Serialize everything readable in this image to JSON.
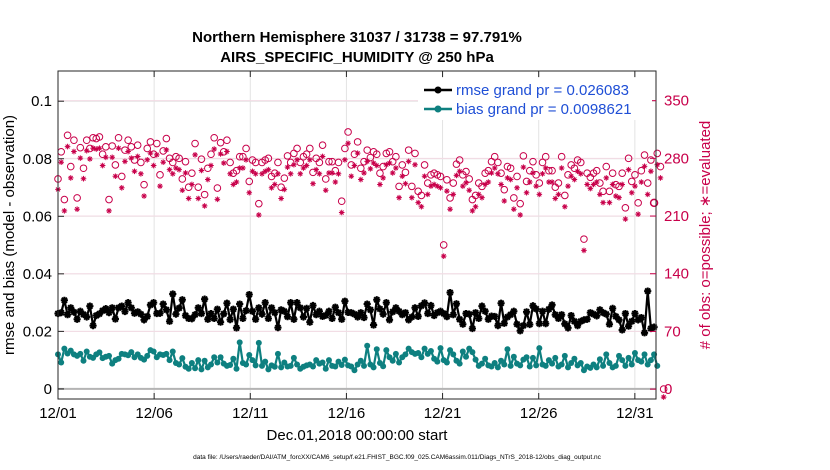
{
  "chart_data": {
    "type": "line",
    "title": "Northern Hemisphere 31037 / 31738 = 97.791%",
    "subtitle": "AIRS_SPECIFIC_HUMIDITY @ 250 hPa",
    "xlabel": "Dec.01,2018 00:00:00 start",
    "ylabel_left": "rmse and bias (model - observation)",
    "ylabel_right": "# of obs: o=possible; ∗=evaluated",
    "footnote": "data file: /Users/raeder/DAI/ATM_forcXX/CAM6_setup/f.e21.FHIST_BGC.f09_025.CAM6assim.011/Diags_NTrS_2018-12/obs_diag_output.nc",
    "x_ticks": [
      "12/01",
      "12/06",
      "12/11",
      "12/16",
      "12/21",
      "12/26",
      "12/31"
    ],
    "x_tick_days": [
      0,
      5,
      10,
      15,
      20,
      25,
      30
    ],
    "xlim_days": [
      0,
      31.1
    ],
    "y_left_ticks": [
      "0",
      "0.02",
      "0.04",
      "0.06",
      "0.08",
      "0.1"
    ],
    "y_left_tick_values": [
      0,
      0.02,
      0.04,
      0.06,
      0.08,
      0.1
    ],
    "ylim_left": [
      -0.0035,
      0.1105
    ],
    "y_right_ticks": [
      "0",
      "70",
      "140",
      "210",
      "280",
      "350"
    ],
    "y_right_tick_values": [
      0,
      70,
      140,
      210,
      280,
      350
    ],
    "ylim_right": [
      -12,
      386
    ],
    "grid": true,
    "legend_placement": "top-right",
    "legend": [
      "rmse grand pr = 0.026083",
      "bias grand pr = 0.0098621"
    ],
    "colors": {
      "rmse": "#000000",
      "bias": "#0e8080",
      "obs": "#c8004a",
      "zero_line": "#b4b4b4"
    },
    "series": [
      {
        "name": "rmse grand pr = 0.026083",
        "values": [
          0.0262,
          0.0265,
          0.0308,
          0.0258,
          0.0282,
          0.0267,
          0.0242,
          0.027,
          0.0259,
          0.025,
          0.0288,
          0.022,
          0.0255,
          0.0261,
          0.0272,
          0.0279,
          0.0265,
          0.0282,
          0.0243,
          0.0282,
          0.0288,
          0.0269,
          0.03,
          0.0282,
          0.0263,
          0.0268,
          0.026,
          0.024,
          0.0252,
          0.0292,
          0.03,
          0.0262,
          0.0263,
          0.0295,
          0.0275,
          0.0235,
          0.033,
          0.026,
          0.0281,
          0.031,
          0.0255,
          0.0245,
          0.0244,
          0.0258,
          0.0282,
          0.0262,
          0.0312,
          0.0242,
          0.0262,
          0.0245,
          0.0277,
          0.0232,
          0.0261,
          0.0298,
          0.0241,
          0.0277,
          0.0212,
          0.0295,
          0.0245,
          0.0272,
          0.0328,
          0.027,
          0.0242,
          0.0282,
          0.026,
          0.03,
          0.0245,
          0.0282,
          0.0265,
          0.0213,
          0.0275,
          0.027,
          0.0251,
          0.03,
          0.0242,
          0.03,
          0.0282,
          0.025,
          0.028,
          0.0232,
          0.029,
          0.0258,
          0.027,
          0.0252,
          0.0256,
          0.027,
          0.0245,
          0.0284,
          0.0265,
          0.0242,
          0.0305,
          0.0266,
          0.0265,
          0.026,
          0.025,
          0.0265,
          0.0248,
          0.0295,
          0.0275,
          0.0222,
          0.031,
          0.0278,
          0.026,
          0.03,
          0.024,
          0.0268,
          0.0282,
          0.027,
          0.0258,
          0.0265,
          0.024,
          0.025,
          0.0282,
          0.0252,
          0.0289,
          0.0299,
          0.0262,
          0.029,
          0.0255,
          0.0265,
          0.027,
          0.0262,
          0.0251,
          0.0335,
          0.0258,
          0.0296,
          0.0242,
          0.0225,
          0.0262,
          0.026,
          0.021,
          0.0265,
          0.0245,
          0.0288,
          0.027,
          0.0242,
          0.0253,
          0.0252,
          0.022,
          0.0298,
          0.0228,
          0.025,
          0.0258,
          0.027,
          0.0225,
          0.0202,
          0.022,
          0.0268,
          0.0224,
          0.0289,
          0.0278,
          0.0227,
          0.027,
          0.0227,
          0.0277,
          0.0292,
          0.0258,
          0.0245,
          0.0258,
          0.0226,
          0.0212,
          0.0255,
          0.0235,
          0.022,
          0.0235,
          0.024,
          0.0242,
          0.0265,
          0.026,
          0.0254,
          0.0275,
          0.0265,
          0.026,
          0.0225,
          0.028,
          0.0252,
          0.024,
          0.0205,
          0.0262,
          0.0218,
          0.0235,
          0.0262,
          0.024,
          0.0248,
          0.0195,
          0.034,
          0.021,
          0.0215
        ]
      },
      {
        "name": "bias grand pr = 0.0098621",
        "values": [
          0.012,
          0.0092,
          0.014,
          0.0123,
          0.0133,
          0.012,
          0.0115,
          0.0122,
          0.0098,
          0.013,
          0.0112,
          0.0108,
          0.012,
          0.0127,
          0.0107,
          0.0112,
          0.0115,
          0.0088,
          0.01,
          0.0105,
          0.0122,
          0.012,
          0.0117,
          0.0128,
          0.011,
          0.012,
          0.0108,
          0.0102,
          0.0115,
          0.0135,
          0.013,
          0.011,
          0.012,
          0.0118,
          0.0122,
          0.01,
          0.013,
          0.009,
          0.0085,
          0.0107,
          0.0077,
          0.007,
          0.009,
          0.0072,
          0.01,
          0.0068,
          0.0098,
          0.0075,
          0.0085,
          0.011,
          0.0092,
          0.011,
          0.0088,
          0.008,
          0.0083,
          0.0105,
          0.007,
          0.0162,
          0.009,
          0.0085,
          0.0118,
          0.01,
          0.0082,
          0.016,
          0.008,
          0.0095,
          0.0068,
          0.0082,
          0.0077,
          0.0122,
          0.0075,
          0.0092,
          0.0078,
          0.008,
          0.0108,
          0.0085,
          0.007,
          0.0077,
          0.0082,
          0.0085,
          0.0078,
          0.01,
          0.0088,
          0.0092,
          0.007,
          0.01,
          0.008,
          0.0078,
          0.0095,
          0.0083,
          0.0102,
          0.0082,
          0.0078,
          0.0065,
          0.0085,
          0.0098,
          0.008,
          0.015,
          0.0085,
          0.0075,
          0.0138,
          0.009,
          0.0079,
          0.0135,
          0.011,
          0.0098,
          0.0122,
          0.0092,
          0.011,
          0.012,
          0.014,
          0.0128,
          0.0122,
          0.0125,
          0.011,
          0.014,
          0.0122,
          0.0132,
          0.0105,
          0.0095,
          0.0142,
          0.01,
          0.0092,
          0.0135,
          0.012,
          0.0098,
          0.0088,
          0.013,
          0.0112,
          0.014,
          0.0128,
          0.0102,
          0.008,
          0.0088,
          0.0105,
          0.0082,
          0.0078,
          0.009,
          0.0075,
          0.0098,
          0.0085,
          0.0138,
          0.008,
          0.0112,
          0.0088,
          0.0082,
          0.0102,
          0.011,
          0.0078,
          0.0108,
          0.0082,
          0.0142,
          0.0085,
          0.008,
          0.01,
          0.0088,
          0.0108,
          0.0078,
          0.0085,
          0.0115,
          0.0075,
          0.009,
          0.0105,
          0.0082,
          0.009,
          0.0065,
          0.0078,
          0.0073,
          0.0085,
          0.0075,
          0.0103,
          0.008,
          0.012,
          0.009,
          0.0075,
          0.008,
          0.0115,
          0.01,
          0.008,
          0.0108,
          0.0085,
          0.0125,
          0.01,
          0.0095,
          0.012,
          0.0085,
          0.01,
          0.012,
          0.008
        ]
      }
    ],
    "obs_possible": [
      255,
      288,
      230,
      308,
      270,
      302,
      232,
      293,
      268,
      302,
      292,
      305,
      304,
      306,
      285,
      294,
      230,
      295,
      272,
      305,
      258,
      290,
      302,
      294,
      278,
      296,
      275,
      248,
      292,
      300,
      285,
      298,
      260,
      289,
      304,
      280,
      275,
      282,
      280,
      255,
      276,
      245,
      262,
      298,
      245,
      279,
      236,
      268,
      285,
      305,
      244,
      299,
      288,
      302,
      275,
      262,
      265,
      282,
      282,
      292,
      252,
      278,
      275,
      225,
      275,
      278,
      280,
      258,
      262,
      275,
      245,
      256,
      283,
      275,
      286,
      292,
      275,
      282,
      285,
      292,
      263,
      280,
      275,
      296,
      255,
      276,
      276,
      265,
      275,
      228,
      292,
      312,
      272,
      285,
      300,
      268,
      276,
      290,
      281,
      288,
      285,
      262,
      270,
      286,
      288,
      276,
      282,
      246,
      272,
      263,
      290,
      246,
      286,
      240,
      235,
      272,
      250,
      260,
      262,
      260,
      258,
      175,
      254,
      232,
      250,
      273,
      278,
      260,
      264,
      255,
      230,
      235,
      250,
      246,
      262,
      265,
      276,
      282,
      275,
      262,
      242,
      270,
      268,
      232,
      258,
      225,
      283,
      252,
      265,
      276,
      260,
      250,
      275,
      282,
      265,
      265,
      245,
      250,
      282,
      235,
      260,
      272,
      268,
      278,
      275,
      182,
      262,
      257,
      262,
      265,
      250,
      240,
      270,
      240,
      262,
      248,
      246,
      262,
      220,
      280,
      252,
      260,
      226,
      265,
      284,
      250,
      278,
      226,
      286,
      270,
      0
    ],
    "obs_evaluated": [
      252,
      285,
      226,
      304,
      266,
      298,
      228,
      290,
      265,
      299,
      289,
      302,
      301,
      302,
      281,
      291,
      226,
      291,
      268,
      302,
      254,
      286,
      298,
      290,
      274,
      292,
      271,
      244,
      288,
      296,
      281,
      294,
      256,
      285,
      300,
      276,
      271,
      278,
      276,
      251,
      272,
      241,
      258,
      294,
      241,
      275,
      232,
      264,
      281,
      301,
      240,
      295,
      284,
      298,
      271,
      258,
      261,
      278,
      278,
      288,
      248,
      274,
      271,
      221,
      271,
      274,
      276,
      254,
      258,
      271,
      241,
      252,
      279,
      271,
      282,
      288,
      271,
      278,
      281,
      288,
      259,
      276,
      271,
      292,
      251,
      272,
      272,
      261,
      271,
      224,
      288,
      308,
      268,
      281,
      296,
      264,
      272,
      286,
      277,
      284,
      281,
      258,
      266,
      282,
      284,
      272,
      278,
      242,
      268,
      259,
      286,
      242,
      282,
      236,
      231,
      268,
      246,
      256,
      258,
      256,
      254,
      171,
      250,
      228,
      246,
      269,
      274,
      256,
      260,
      251,
      226,
      231,
      246,
      242,
      258,
      261,
      272,
      278,
      271,
      258,
      238,
      266,
      264,
      228,
      254,
      221,
      279,
      248,
      261,
      272,
      256,
      246,
      271,
      278,
      261,
      261,
      241,
      246,
      278,
      231,
      256,
      268,
      264,
      274,
      271,
      178,
      258,
      253,
      258,
      261,
      246,
      236,
      266,
      236,
      258,
      244,
      242,
      258,
      216,
      276,
      248,
      256,
      222,
      261,
      280,
      246,
      274,
      222,
      282,
      266,
      0
    ]
  }
}
